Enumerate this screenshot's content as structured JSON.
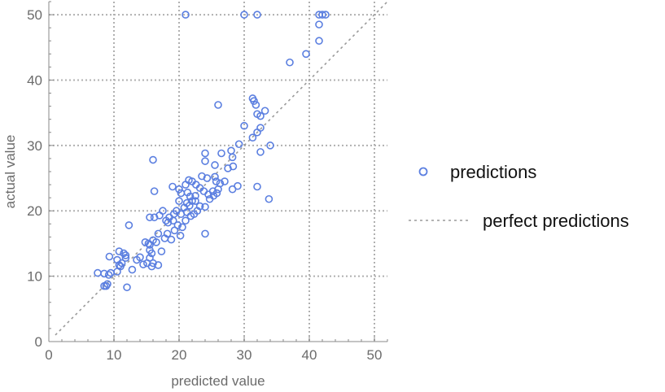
{
  "chart_data": {
    "type": "scatter",
    "xlabel": "predicted value",
    "ylabel": "actual value",
    "xlim": [
      0,
      52
    ],
    "ylim": [
      0,
      52
    ],
    "x_ticks": [
      0,
      10,
      20,
      30,
      40,
      50
    ],
    "y_ticks": [
      0,
      10,
      20,
      30,
      40,
      50
    ],
    "grid": true,
    "grid_style": "dotted",
    "colors": {
      "points": "#5b7fe0",
      "reference_line": "#9a9a9a",
      "grid": "#b0b0b0",
      "axis": "#888888"
    },
    "legend": {
      "placement": "right",
      "entries": [
        {
          "label": "predictions",
          "marker": "circle"
        },
        {
          "label": "perfect predictions",
          "marker": "dashed-line"
        }
      ]
    },
    "reference_line": {
      "from": [
        1,
        1
      ],
      "to": [
        52,
        52
      ]
    },
    "series": [
      {
        "name": "predictions",
        "points": [
          [
            21,
            50
          ],
          [
            30,
            50
          ],
          [
            32,
            50
          ],
          [
            41.5,
            50
          ],
          [
            42,
            50
          ],
          [
            42.5,
            50
          ],
          [
            41.5,
            48.5
          ],
          [
            41.5,
            46
          ],
          [
            39.5,
            44
          ],
          [
            37,
            42.7
          ],
          [
            26,
            36.2
          ],
          [
            31.3,
            37.2
          ],
          [
            31.5,
            36.8
          ],
          [
            31.8,
            36.2
          ],
          [
            33.2,
            35.3
          ],
          [
            32,
            34.8
          ],
          [
            32.5,
            34.5
          ],
          [
            30,
            33
          ],
          [
            32.5,
            32.7
          ],
          [
            32,
            32
          ],
          [
            31.3,
            31.2
          ],
          [
            34,
            30
          ],
          [
            32.5,
            29
          ],
          [
            29.2,
            30.2
          ],
          [
            28,
            29.2
          ],
          [
            28.2,
            28.2
          ],
          [
            26.5,
            28.8
          ],
          [
            24,
            28.8
          ],
          [
            24,
            27.6
          ],
          [
            27.5,
            26.5
          ],
          [
            28.3,
            26.8
          ],
          [
            25.5,
            27
          ],
          [
            16,
            27.8
          ],
          [
            25.5,
            25.2
          ],
          [
            24.3,
            25
          ],
          [
            23.5,
            25.3
          ],
          [
            25.7,
            24.5
          ],
          [
            26.3,
            24.2
          ],
          [
            27,
            24.5
          ],
          [
            29,
            23.8
          ],
          [
            28.2,
            23.3
          ],
          [
            32,
            23.7
          ],
          [
            33.8,
            21.8
          ],
          [
            24.7,
            21.8
          ],
          [
            25.3,
            22.3
          ],
          [
            25.8,
            22.7
          ],
          [
            26,
            23.3
          ],
          [
            25.2,
            23
          ],
          [
            24.5,
            22.5
          ],
          [
            23.8,
            23
          ],
          [
            23.2,
            23.5
          ],
          [
            22.5,
            22.3
          ],
          [
            22,
            21.5
          ],
          [
            21.3,
            22.8
          ],
          [
            21,
            24
          ],
          [
            21.5,
            24.7
          ],
          [
            22,
            24.5
          ],
          [
            22.6,
            24
          ],
          [
            19,
            23.7
          ],
          [
            20,
            23.3
          ],
          [
            16.2,
            23
          ],
          [
            20.3,
            22.7
          ],
          [
            21.7,
            22.2
          ],
          [
            21.2,
            21.2
          ],
          [
            21.6,
            20.8
          ],
          [
            20.8,
            20.5
          ],
          [
            20,
            21.5
          ],
          [
            19.6,
            20
          ],
          [
            20.3,
            19.5
          ],
          [
            21.2,
            19.8
          ],
          [
            21.8,
            19.2
          ],
          [
            22.3,
            19.5
          ],
          [
            22.8,
            20
          ],
          [
            23.2,
            20.7
          ],
          [
            24,
            20.6
          ],
          [
            22.5,
            21.5
          ],
          [
            21,
            18.5
          ],
          [
            19.2,
            19.5
          ],
          [
            18.5,
            19
          ],
          [
            18,
            18.5
          ],
          [
            17,
            19.3
          ],
          [
            18.3,
            18.2
          ],
          [
            19.1,
            18.5
          ],
          [
            19.8,
            17.8
          ],
          [
            20.5,
            17.5
          ],
          [
            19.3,
            17
          ],
          [
            20.2,
            16.2
          ],
          [
            18.2,
            16.5
          ],
          [
            17.8,
            15.8
          ],
          [
            18.8,
            15.6
          ],
          [
            17.5,
            20
          ],
          [
            15.5,
            19
          ],
          [
            16.2,
            19
          ],
          [
            16.8,
            16.5
          ],
          [
            16,
            15.5
          ],
          [
            16.5,
            15.2
          ],
          [
            15.5,
            14.8
          ],
          [
            14.8,
            15.2
          ],
          [
            15.3,
            15
          ],
          [
            15.5,
            14
          ],
          [
            15.8,
            13.5
          ],
          [
            17.3,
            13.8
          ],
          [
            16,
            12
          ],
          [
            15.1,
            12
          ],
          [
            15.5,
            12.8
          ],
          [
            14.5,
            11.8
          ],
          [
            13.5,
            12.5
          ],
          [
            14,
            12.9
          ],
          [
            12.8,
            11
          ],
          [
            11.8,
            12.8
          ],
          [
            11.5,
            13.5
          ],
          [
            11.8,
            13.2
          ],
          [
            10.8,
            13.8
          ],
          [
            10.5,
            12.5
          ],
          [
            11.2,
            12
          ],
          [
            11,
            11.5
          ],
          [
            10.8,
            11.7
          ],
          [
            10.5,
            10.7
          ],
          [
            9.5,
            10.5
          ],
          [
            9.2,
            10.2
          ],
          [
            8.5,
            10.4
          ],
          [
            7.5,
            10.5
          ],
          [
            9.3,
            13
          ],
          [
            12.3,
            17.8
          ],
          [
            24,
            16.5
          ],
          [
            12,
            8.3
          ],
          [
            9,
            8.8
          ],
          [
            8.5,
            8.5
          ],
          [
            8.8,
            8.5
          ],
          [
            15.8,
            11.5
          ],
          [
            16.8,
            11.7
          ]
        ]
      }
    ]
  }
}
